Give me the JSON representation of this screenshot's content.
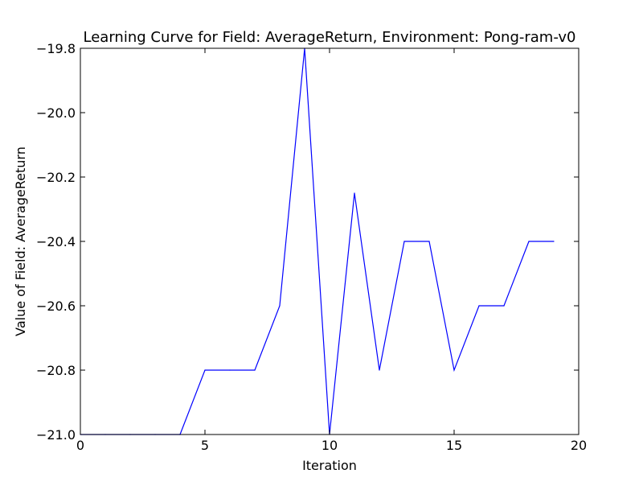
{
  "chart_data": {
    "type": "line",
    "title": "Learning Curve for Field: AverageReturn, Environment: Pong-ram-v0",
    "xlabel": "Iteration",
    "ylabel": "Value of Field: AverageReturn",
    "xlim": [
      0,
      20
    ],
    "ylim": [
      -21.0,
      -19.8
    ],
    "xticks": [
      0,
      5,
      10,
      15,
      20
    ],
    "xtick_labels": [
      "0",
      "5",
      "10",
      "15",
      "20"
    ],
    "yticks": [
      -21.0,
      -20.8,
      -20.6,
      -20.4,
      -20.2,
      -20.0,
      -19.8
    ],
    "ytick_labels": [
      "−21.0",
      "−20.8",
      "−20.6",
      "−20.4",
      "−20.2",
      "−20.0",
      "−19.8"
    ],
    "grid": false,
    "series": [
      {
        "color": "#0000ff",
        "x": [
          0,
          1,
          2,
          3,
          4,
          5,
          6,
          7,
          8,
          9,
          10,
          11,
          12,
          13,
          14,
          15,
          16,
          17,
          18,
          19
        ],
        "y": [
          -21.0,
          -21.0,
          -21.0,
          -21.0,
          -21.0,
          -20.8,
          -20.8,
          -20.8,
          -20.6,
          -19.8,
          -21.0,
          -20.25,
          -20.8,
          -20.4,
          -20.4,
          -20.8,
          -20.6,
          -20.6,
          -20.4,
          -20.4
        ]
      }
    ]
  }
}
